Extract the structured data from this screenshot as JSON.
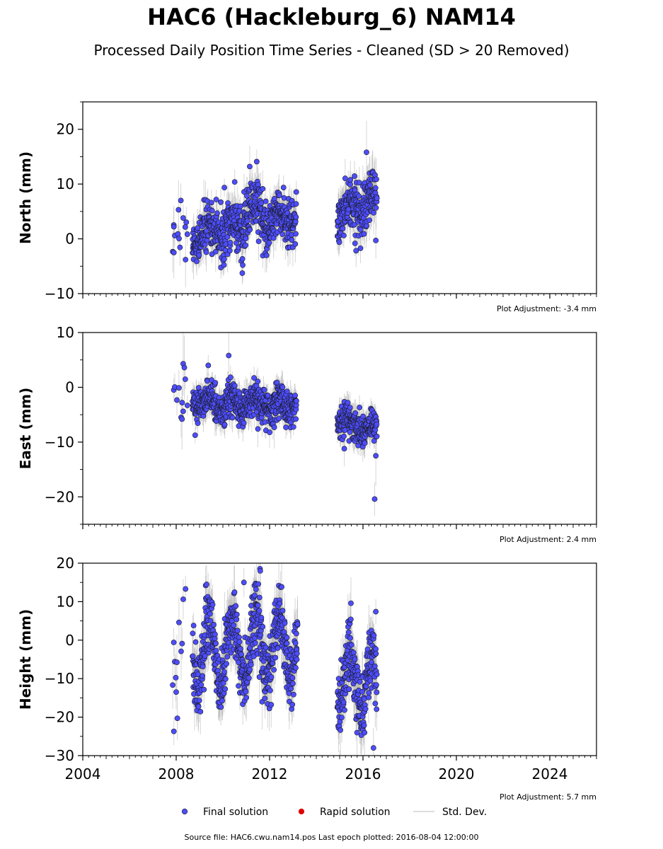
{
  "title": "HAC6 (Hackleburg_6) NAM14",
  "subtitle": "Processed Daily Position Time Series - Cleaned (SD > 20 Removed)",
  "source_text": "Source file: HAC6.cwu.nam14.pos  Last epoch plotted: 2016-08-04 12:00:00",
  "legend": [
    {
      "label": "Final solution",
      "color": "#4d4dff",
      "kind": "marker"
    },
    {
      "label": "Rapid solution",
      "color": "#dd0000",
      "kind": "marker"
    },
    {
      "label": "Std. Dev.",
      "color": "#d0d0d0",
      "kind": "line"
    }
  ],
  "colors": {
    "final_fill": "#4d4dff",
    "final_edge": "#1a1a1a",
    "errorbar": "#b4b4b4"
  },
  "chart_data": [
    {
      "type": "scatter",
      "ylabel": "North (mm)",
      "adjustment": "Plot Adjustment: -3.4 mm",
      "xlim": [
        2004,
        2026
      ],
      "ylim": [
        -10,
        25
      ],
      "yticks": [
        -10,
        0,
        10,
        20
      ],
      "ytick_labels": [
        "−10",
        "0",
        "10",
        "20"
      ],
      "show_xtick_labels": false,
      "segments": [
        {
          "t0": 2007.85,
          "t1": 2008.5,
          "sparse": true,
          "a": 0.5,
          "b": 1.0,
          "amp": 0.8,
          "noise": 2.0,
          "sd": 2.5
        },
        {
          "t0": 2008.7,
          "t1": 2010.9,
          "a": 0.5,
          "b": 2.5,
          "amp": 1.5,
          "noise": 2.2,
          "sd": 2.5
        },
        {
          "t0": 2010.9,
          "t1": 2011.6,
          "a": 5.0,
          "b": 5.0,
          "amp": 2.0,
          "noise": 2.4,
          "sd": 2.5
        },
        {
          "t0": 2011.6,
          "t1": 2013.15,
          "a": 3.5,
          "b": 3.5,
          "amp": 1.5,
          "noise": 2.0,
          "sd": 2.5
        },
        {
          "t0": 2014.9,
          "t1": 2015.6,
          "a": 4.0,
          "b": 5.5,
          "amp": 1.5,
          "noise": 2.0,
          "sd": 2.5
        },
        {
          "t0": 2015.6,
          "t1": 2016.6,
          "a": 6.0,
          "b": 7.0,
          "amp": 1.5,
          "noise": 2.3,
          "sd": 2.8
        }
      ],
      "points": [
        {
          "t": 2007.9,
          "v": 2.2
        },
        {
          "t": 2007.9,
          "v": -2.5
        },
        {
          "t": 2008.2,
          "v": 7.0
        },
        {
          "t": 2008.1,
          "v": 5.3
        },
        {
          "t": 2008.4,
          "v": -3.8
        },
        {
          "t": 2011.15,
          "v": 13.2
        },
        {
          "t": 2016.15,
          "v": 15.8
        },
        {
          "t": 2016.55,
          "v": -0.3
        },
        {
          "t": 2010.85,
          "v": -4.8
        }
      ]
    },
    {
      "type": "scatter",
      "ylabel": "East (mm)",
      "adjustment": "Plot Adjustment: 2.4 mm",
      "xlim": [
        2004,
        2026
      ],
      "ylim": [
        -25,
        10
      ],
      "yticks": [
        -20,
        -10,
        0,
        10
      ],
      "ytick_labels": [
        "−20",
        "−10",
        "0",
        "10"
      ],
      "show_xtick_labels": false,
      "segments": [
        {
          "t0": 2007.85,
          "t1": 2008.5,
          "sparse": true,
          "a": -1.0,
          "b": -2.0,
          "amp": 0.5,
          "noise": 2.5,
          "sd": 2.5
        },
        {
          "t0": 2008.7,
          "t1": 2010.9,
          "a": -2.5,
          "b": -3.5,
          "amp": 1.2,
          "noise": 1.6,
          "sd": 2.0
        },
        {
          "t0": 2010.9,
          "t1": 2013.15,
          "a": -2.5,
          "b": -3.5,
          "amp": 1.2,
          "noise": 1.6,
          "sd": 2.0
        },
        {
          "t0": 2014.9,
          "t1": 2016.6,
          "a": -6.0,
          "b": -8.0,
          "amp": 1.0,
          "noise": 1.4,
          "sd": 2.0
        }
      ],
      "points": [
        {
          "t": 2008.3,
          "v": 4.3
        },
        {
          "t": 2008.35,
          "v": 3.6
        },
        {
          "t": 2010.25,
          "v": 5.8
        },
        {
          "t": 2008.25,
          "v": -5.8
        },
        {
          "t": 2015.2,
          "v": -11.2
        },
        {
          "t": 2016.55,
          "v": -12.5
        },
        {
          "t": 2016.5,
          "v": -20.4
        },
        {
          "t": 2011.5,
          "v": -7.6
        },
        {
          "t": 2012.2,
          "v": -7.3
        }
      ]
    },
    {
      "type": "scatter",
      "ylabel": "Height (mm)",
      "adjustment": "Plot Adjustment: 5.7 mm",
      "xlim": [
        2004,
        2026
      ],
      "ylim": [
        -30,
        20
      ],
      "yticks": [
        -30,
        -20,
        -10,
        0,
        10,
        20
      ],
      "ytick_labels": [
        "−30",
        "−20",
        "−10",
        "0",
        "10",
        "20"
      ],
      "show_xtick_labels": true,
      "xticks": [
        2004,
        2008,
        2012,
        2016,
        2020,
        2024
      ],
      "xtick_labels": [
        "2004",
        "2008",
        "2012",
        "2016",
        "2020",
        "2024"
      ],
      "segments": [
        {
          "t0": 2007.85,
          "t1": 2008.5,
          "sparse": true,
          "a": -2.0,
          "b": -2.0,
          "amp": 2.0,
          "noise": 6.0,
          "sd": 5.0
        },
        {
          "t0": 2008.7,
          "t1": 2013.2,
          "a": -3.0,
          "b": -1.0,
          "amp": 8.0,
          "noise": 4.5,
          "sd": 5.0
        },
        {
          "t0": 2014.9,
          "t1": 2016.6,
          "a": -12.0,
          "b": -10.0,
          "amp": 7.0,
          "noise": 4.5,
          "sd": 5.0
        }
      ],
      "points": [
        {
          "t": 2007.9,
          "v": -23.7
        },
        {
          "t": 2008.0,
          "v": -13.5
        },
        {
          "t": 2008.4,
          "v": 13.3
        },
        {
          "t": 2011.6,
          "v": 18.0
        },
        {
          "t": 2010.9,
          "v": 15.0
        },
        {
          "t": 2016.45,
          "v": -28.0
        },
        {
          "t": 2016.55,
          "v": 7.4
        },
        {
          "t": 2008.05,
          "v": -20.3
        }
      ]
    }
  ]
}
